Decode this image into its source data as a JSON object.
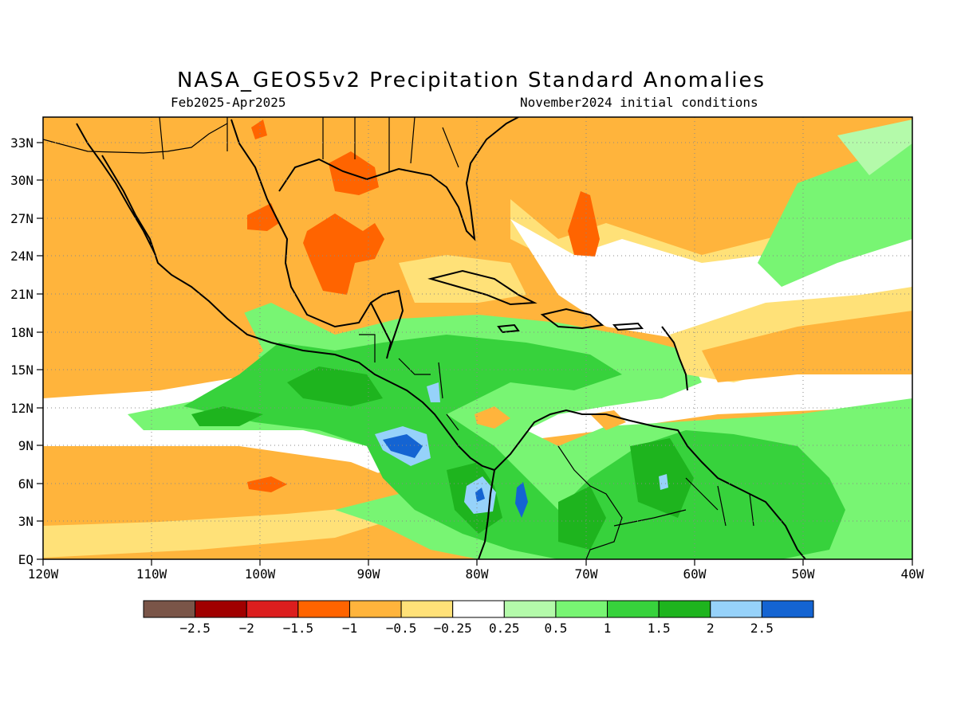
{
  "title": "NASA_GEOS5v2 Precipitation Standard Anomalies",
  "subtitle_left": "Feb2025-Apr2025",
  "subtitle_right": "November2024 initial conditions",
  "axes": {
    "lon_labels": [
      "120W",
      "110W",
      "100W",
      "90W",
      "80W",
      "70W",
      "60W",
      "50W",
      "40W"
    ],
    "lat_labels": [
      "EQ",
      "3N",
      "6N",
      "9N",
      "12N",
      "15N",
      "18N",
      "21N",
      "24N",
      "27N",
      "30N",
      "33N"
    ],
    "lon_range": [
      -120,
      -40
    ],
    "lat_range": [
      0,
      35
    ],
    "grid": "dotted"
  },
  "colorbar": {
    "colors": [
      "#7a5548",
      "#a00000",
      "#dc1e1e",
      "#ff6400",
      "#ffb43c",
      "#ffe178",
      "#ffffff",
      "#b4faaa",
      "#78f573",
      "#37d23c",
      "#1eb41e",
      "#96d2fa",
      "#1464d2"
    ],
    "labels": [
      "-2.5",
      "-2",
      "-1.5",
      "-1",
      "-0.5",
      "-0.25",
      "0.25",
      "0.5",
      "1",
      "1.5",
      "2",
      "2.5"
    ]
  }
}
